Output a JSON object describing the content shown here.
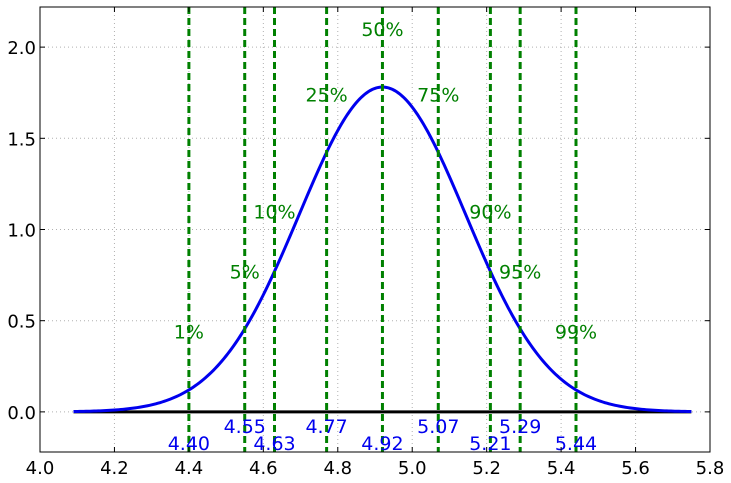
{
  "chart_data": {
    "type": "line",
    "title": "",
    "xlabel": "",
    "ylabel": "",
    "xlim": [
      4.0,
      5.8
    ],
    "ylim": [
      -0.22,
      2.22
    ],
    "xticks": [
      "4.0",
      "4.2",
      "4.4",
      "4.6",
      "4.8",
      "5.0",
      "5.2",
      "5.4",
      "5.6",
      "5.8"
    ],
    "yticks": [
      "0.0",
      "0.5",
      "1.0",
      "1.5",
      "2.0"
    ],
    "grid": true,
    "curve": {
      "type": "normal-pdf",
      "mean": 4.92,
      "sd": 0.224,
      "x_range": [
        4.09,
        5.75
      ],
      "color": "#0000ee"
    },
    "baseline": {
      "y": 0.0,
      "x_range": [
        4.09,
        5.75
      ],
      "color": "#000000"
    },
    "percentile_color": "#008000",
    "value_color": "#0000ee",
    "percentiles": [
      {
        "label": "1%",
        "value": 4.4,
        "value_label": "4.40",
        "label_y": 0.44,
        "value_label_row": "lower"
      },
      {
        "label": "5%",
        "value": 4.55,
        "value_label": "4.55",
        "label_y": 0.77,
        "value_label_row": "upper"
      },
      {
        "label": "10%",
        "value": 4.63,
        "value_label": "4.63",
        "label_y": 1.1,
        "value_label_row": "lower"
      },
      {
        "label": "25%",
        "value": 4.77,
        "value_label": "4.77",
        "label_y": 1.74,
        "value_label_row": "upper"
      },
      {
        "label": "50%",
        "value": 4.92,
        "value_label": "4.92",
        "label_y": 2.1,
        "value_label_row": "lower"
      },
      {
        "label": "75%",
        "value": 5.07,
        "value_label": "5.07",
        "label_y": 1.74,
        "value_label_row": "upper"
      },
      {
        "label": "90%",
        "value": 5.21,
        "value_label": "5.21",
        "label_y": 1.1,
        "value_label_row": "lower"
      },
      {
        "label": "95%",
        "value": 5.29,
        "value_label": "5.29",
        "label_y": 0.77,
        "value_label_row": "upper"
      },
      {
        "label": "99%",
        "value": 5.44,
        "value_label": "5.44",
        "label_y": 0.44,
        "value_label_row": "lower"
      }
    ]
  }
}
